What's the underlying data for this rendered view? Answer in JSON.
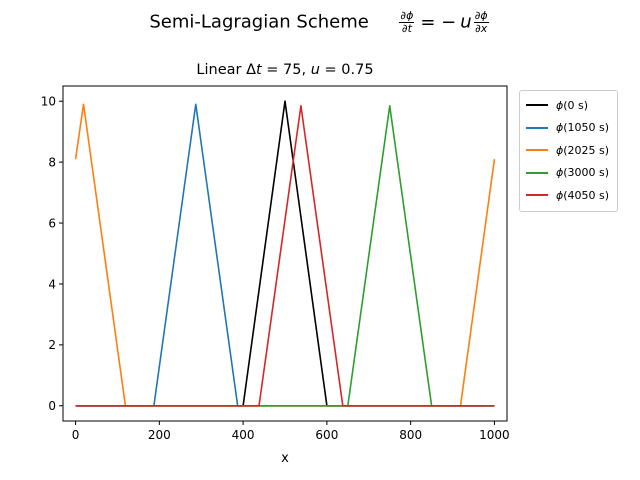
{
  "chart_data": {
    "type": "line",
    "suptitle": {
      "text": "Semi-Lagragian Scheme",
      "equation": {
        "lhs_num": "∂ϕ",
        "lhs_den": "∂t",
        "equals": "= −",
        "u": "u",
        "rhs_num": "∂ϕ",
        "rhs_den": "∂x"
      }
    },
    "title": {
      "prefix": "Linear Δ",
      "t": "t",
      "dt_part": " =  75, ",
      "u": "u",
      "u_part": " =  0.75"
    },
    "xlabel": "x",
    "ylabel": "",
    "xlim": [
      -30,
      1030
    ],
    "ylim": [
      -0.5,
      10.5
    ],
    "xticks": [
      0,
      200,
      400,
      600,
      800,
      1000
    ],
    "yticks": [
      0,
      2,
      4,
      6,
      8,
      10
    ],
    "xtick_labels": [
      "0",
      "200",
      "400",
      "600",
      "800",
      "1000"
    ],
    "ytick_labels": [
      "0",
      "2",
      "4",
      "6",
      "8",
      "10"
    ],
    "grid": false,
    "legend_placement": "outside upper right",
    "series": [
      {
        "name": "ϕ(0 s)",
        "name_phi": "ϕ",
        "name_rest": "(0 s)",
        "color": "#000000",
        "x": [
          0,
          400,
          500,
          600,
          1000
        ],
        "y": [
          0,
          0,
          10,
          0,
          0
        ]
      },
      {
        "name": "ϕ(1050 s)",
        "name_phi": "ϕ",
        "name_rest": "(1050 s)",
        "color": "#1f77b4",
        "x": [
          0,
          187,
          287,
          387,
          1000
        ],
        "y": [
          0,
          0,
          9.9,
          0,
          0
        ]
      },
      {
        "name": "ϕ(2025 s)",
        "name_phi": "ϕ",
        "name_rest": "(2025 s)",
        "color": "#ff7f0e",
        "x": [
          0,
          19,
          119,
          919,
          1000
        ],
        "y": [
          8.1,
          9.9,
          0,
          0,
          8.1
        ]
      },
      {
        "name": "ϕ(3000 s)",
        "name_phi": "ϕ",
        "name_rest": "(3000 s)",
        "color": "#2ca02c",
        "x": [
          0,
          650,
          750,
          850,
          1000
        ],
        "y": [
          0,
          0,
          9.85,
          0,
          0
        ]
      },
      {
        "name": "ϕ(4050 s)",
        "name_phi": "ϕ",
        "name_rest": "(4050 s)",
        "color": "#d62728",
        "x": [
          0,
          438,
          538,
          638,
          1000
        ],
        "y": [
          0,
          0,
          9.85,
          0,
          0
        ]
      }
    ]
  }
}
